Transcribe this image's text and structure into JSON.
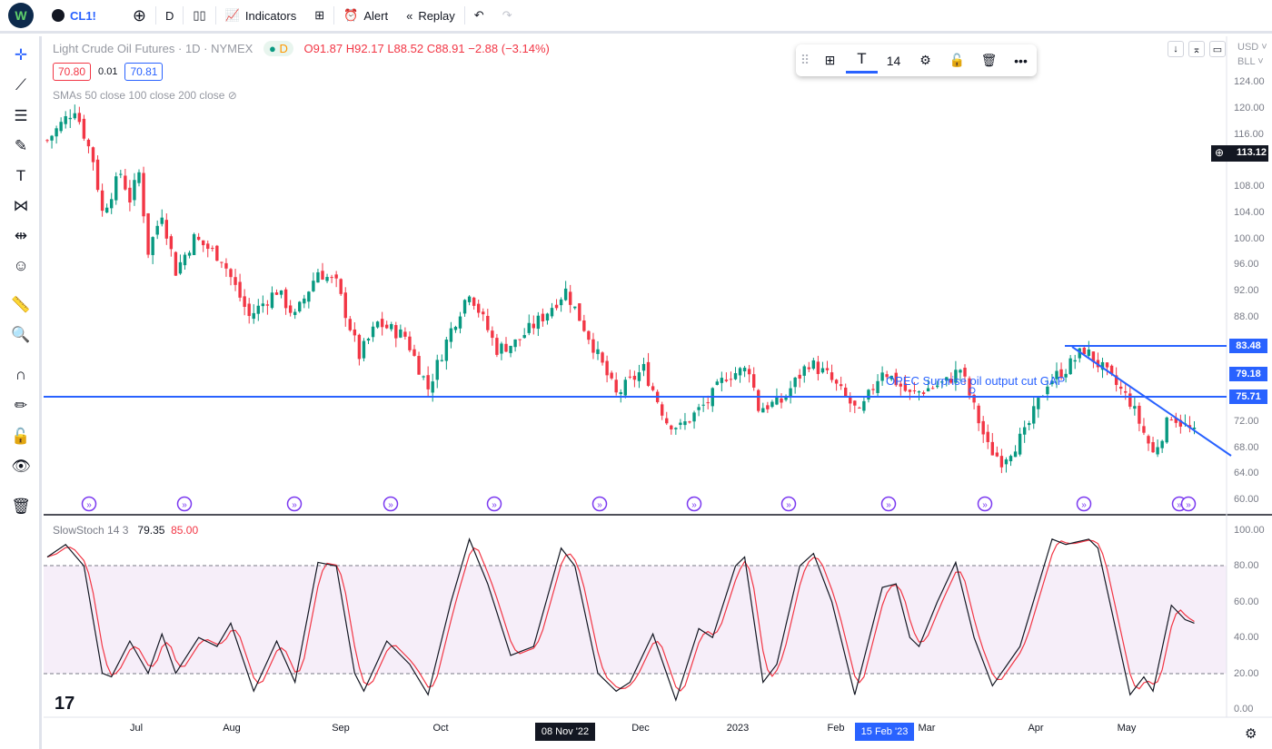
{
  "topbar": {
    "symbol": "CL1!",
    "interval": "D",
    "indicators": "Indicators",
    "alert": "Alert",
    "replay": "Replay"
  },
  "legend": {
    "title": "Light Crude Oil Futures · 1D · NYMEX",
    "status": "D",
    "o": "O91.87",
    "h": "H92.17",
    "l": "L88.52",
    "c": "C88.91",
    "change": "−2.88 (−3.14%)",
    "bid": "70.80",
    "spread": "0.01",
    "ask": "70.81",
    "smas": "SMAs 50 close 100 close 200 close"
  },
  "floating_toolbar": {
    "font_size": "14"
  },
  "price_axis": {
    "currency": "USD",
    "unit": "BLL",
    "labels": [
      "124.00",
      "120.00",
      "116.00",
      "108.00",
      "104.00",
      "100.00",
      "96.00",
      "92.00",
      "88.00",
      "72.00",
      "68.00",
      "64.00",
      "60.00"
    ],
    "crosshair_price": "113.12",
    "tags": [
      {
        "value": "83.48"
      },
      {
        "value": "79.18"
      },
      {
        "value": "75.71"
      }
    ]
  },
  "annotation": "OPEC Surprise oil output cut GAP",
  "stoch": {
    "label": "SlowStoch 14 3",
    "k": "79.35",
    "d": "85.00",
    "axis": [
      "100.00",
      "80.00",
      "60.00",
      "40.00",
      "20.00",
      "0.00"
    ]
  },
  "time_axis": {
    "labels": [
      "Jul",
      "Aug",
      "Sep",
      "Oct",
      "Dec",
      "2023",
      "Feb",
      "Mar",
      "Apr",
      "May"
    ],
    "highlight_dark": "08 Nov '22",
    "highlight_blue": "15 Feb '23"
  },
  "chart_data": {
    "type": "candlestick",
    "title": "Light Crude Oil Futures 1D NYMEX",
    "ylim": [
      60,
      124
    ],
    "approx_close_path": [
      [
        0,
        115
      ],
      [
        6,
        120
      ],
      [
        10,
        112
      ],
      [
        12,
        104
      ],
      [
        16,
        110
      ],
      [
        18,
        106
      ],
      [
        20,
        110
      ],
      [
        22,
        98
      ],
      [
        25,
        104
      ],
      [
        28,
        95
      ],
      [
        32,
        100
      ],
      [
        38,
        97
      ],
      [
        44,
        88
      ],
      [
        50,
        92
      ],
      [
        54,
        88
      ],
      [
        59,
        95
      ],
      [
        63,
        93
      ],
      [
        68,
        82
      ],
      [
        72,
        87
      ],
      [
        78,
        85
      ],
      [
        83,
        77
      ],
      [
        88,
        86
      ],
      [
        92,
        92
      ],
      [
        98,
        83
      ],
      [
        102,
        84
      ],
      [
        108,
        88
      ],
      [
        113,
        92
      ],
      [
        118,
        85
      ],
      [
        124,
        76
      ],
      [
        130,
        80
      ],
      [
        135,
        72
      ],
      [
        138,
        71
      ],
      [
        144,
        75
      ],
      [
        148,
        79
      ],
      [
        153,
        80
      ],
      [
        155,
        74
      ],
      [
        160,
        75
      ],
      [
        166,
        81
      ],
      [
        170,
        79
      ],
      [
        177,
        73
      ],
      [
        182,
        80
      ],
      [
        188,
        76
      ],
      [
        196,
        78
      ],
      [
        199,
        80
      ],
      [
        205,
        68
      ],
      [
        208,
        66
      ],
      [
        213,
        70
      ],
      [
        218,
        78
      ],
      [
        222,
        80
      ],
      [
        226,
        83
      ],
      [
        230,
        80
      ],
      [
        236,
        75
      ],
      [
        241,
        67
      ],
      [
        245,
        73
      ],
      [
        250,
        70
      ]
    ],
    "horizontal_lines": [
      83.48,
      75.71
    ],
    "trendline": [
      [
        83.48
      ],
      [
        66.5
      ]
    ],
    "stoch_k_path": [
      [
        0,
        85
      ],
      [
        4,
        92
      ],
      [
        8,
        80
      ],
      [
        12,
        20
      ],
      [
        14,
        18
      ],
      [
        18,
        38
      ],
      [
        22,
        20
      ],
      [
        25,
        42
      ],
      [
        28,
        20
      ],
      [
        33,
        40
      ],
      [
        37,
        35
      ],
      [
        40,
        48
      ],
      [
        45,
        10
      ],
      [
        50,
        38
      ],
      [
        54,
        15
      ],
      [
        59,
        82
      ],
      [
        63,
        80
      ],
      [
        67,
        20
      ],
      [
        69,
        10
      ],
      [
        74,
        38
      ],
      [
        79,
        25
      ],
      [
        83,
        8
      ],
      [
        88,
        60
      ],
      [
        92,
        95
      ],
      [
        96,
        70
      ],
      [
        101,
        30
      ],
      [
        106,
        35
      ],
      [
        112,
        90
      ],
      [
        115,
        80
      ],
      [
        120,
        20
      ],
      [
        124,
        10
      ],
      [
        127,
        15
      ],
      [
        132,
        42
      ],
      [
        137,
        5
      ],
      [
        142,
        45
      ],
      [
        145,
        40
      ],
      [
        150,
        80
      ],
      [
        152,
        85
      ],
      [
        156,
        15
      ],
      [
        159,
        25
      ],
      [
        164,
        80
      ],
      [
        167,
        87
      ],
      [
        171,
        60
      ],
      [
        176,
        8
      ],
      [
        182,
        68
      ],
      [
        185,
        70
      ],
      [
        188,
        40
      ],
      [
        190,
        35
      ],
      [
        194,
        60
      ],
      [
        198,
        82
      ],
      [
        202,
        40
      ],
      [
        206,
        13
      ],
      [
        212,
        35
      ],
      [
        219,
        95
      ],
      [
        222,
        92
      ],
      [
        227,
        95
      ],
      [
        229,
        90
      ],
      [
        236,
        8
      ],
      [
        239,
        18
      ],
      [
        241,
        10
      ],
      [
        245,
        58
      ],
      [
        248,
        50
      ],
      [
        250,
        48
      ]
    ]
  }
}
